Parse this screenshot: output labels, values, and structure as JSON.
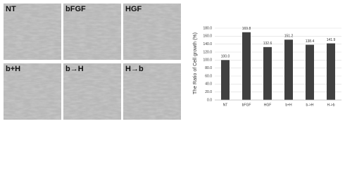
{
  "image_panels": [
    {
      "label": "NT"
    },
    {
      "label": "bFGF"
    },
    {
      "label": "HGF"
    },
    {
      "label": "b+H"
    },
    {
      "label": "b→H"
    },
    {
      "label": "H→b"
    }
  ],
  "chart_data": {
    "type": "bar",
    "y_label": "The Ratio of Cell growth (%)",
    "categories": [
      "NT",
      "bFGF",
      "HGF",
      "b+H",
      "b->H",
      "H->b"
    ],
    "values": [
      100.0,
      169.8,
      132.6,
      151.2,
      138.4,
      141.9
    ],
    "value_labels": [
      "100.0",
      "169.8",
      "132.6",
      "151.2",
      "138.4",
      "141.9"
    ],
    "color": "#404040",
    "ylim": [
      0,
      180
    ],
    "yticks": [
      {
        "value": 0,
        "label": "0.0"
      },
      {
        "value": 20,
        "label": "20.0"
      },
      {
        "value": 40,
        "label": "40.0"
      },
      {
        "value": 60,
        "label": "60.0"
      },
      {
        "value": 80,
        "label": "80.0"
      },
      {
        "value": 100,
        "label": "100.0"
      },
      {
        "value": 120,
        "label": "120.0"
      },
      {
        "value": 140,
        "label": "140.0"
      },
      {
        "value": 160,
        "label": "160.0"
      },
      {
        "value": 180,
        "label": "180.0"
      }
    ],
    "grid": true
  }
}
